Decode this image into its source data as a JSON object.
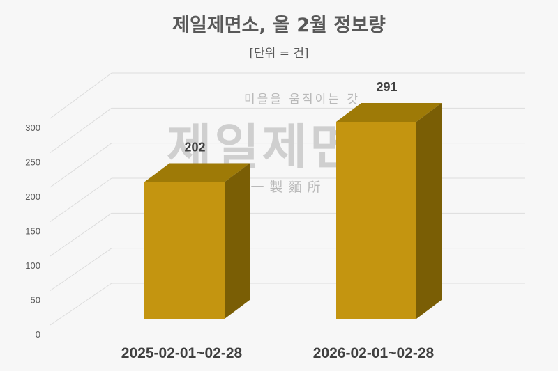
{
  "chart_data": {
    "type": "bar",
    "title": "제일제면소, 올 2월 정보량",
    "subtitle": "[단위 = 건]",
    "categories": [
      "2025-02-01~02-28",
      "2026-02-01~02-28"
    ],
    "values": [
      202,
      291
    ],
    "ylim": [
      0,
      300
    ],
    "yticks": [
      0,
      50,
      100,
      150,
      200,
      250,
      300
    ],
    "grid": true,
    "bar_color": "#c49510",
    "bar_top_color": "#9e7a07",
    "bar_side_color": "#7a5e05",
    "watermark": {
      "line1": "미을을 움직이는 갓",
      "line2": "제일제면소",
      "line3": "第一製麵所"
    }
  }
}
